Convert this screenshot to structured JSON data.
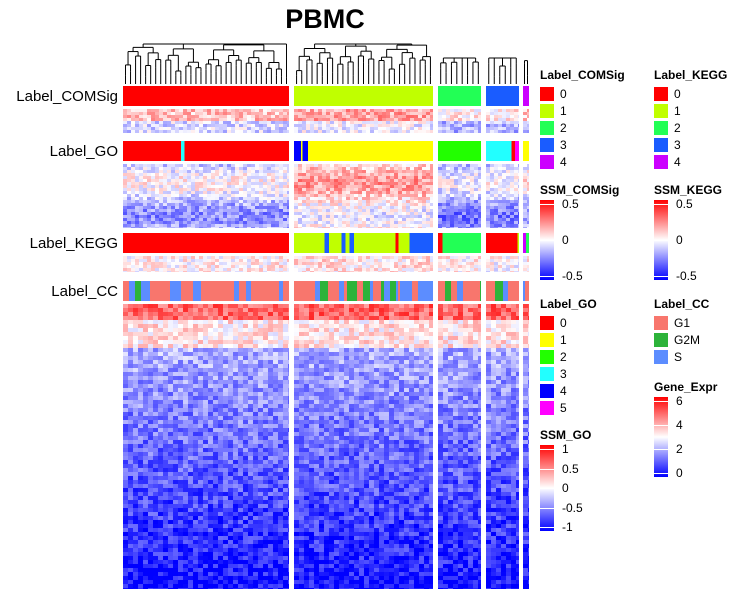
{
  "title": "PBMC",
  "row_labels": {
    "comsig": "Label_COMSig",
    "go": "Label_GO",
    "kegg": "Label_KEGG",
    "cc": "Label_CC"
  },
  "legends": {
    "label_comsig": {
      "title": "Label_COMSig",
      "items": [
        {
          "label": "0",
          "color": "#FF0000"
        },
        {
          "label": "1",
          "color": "#C0FF00"
        },
        {
          "label": "2",
          "color": "#22FF55"
        },
        {
          "label": "3",
          "color": "#1A5CFF"
        },
        {
          "label": "4",
          "color": "#CC00FF"
        }
      ]
    },
    "label_kegg": {
      "title": "Label_KEGG",
      "items": [
        {
          "label": "0",
          "color": "#FF0000"
        },
        {
          "label": "1",
          "color": "#C0FF00"
        },
        {
          "label": "2",
          "color": "#22FF55"
        },
        {
          "label": "3",
          "color": "#1A5CFF"
        },
        {
          "label": "4",
          "color": "#CC00FF"
        }
      ]
    },
    "ssm_comsig": {
      "title": "SSM_COMSig",
      "ticks": [
        "0.5",
        "0",
        "-0.5"
      ]
    },
    "ssm_kegg": {
      "title": "SSM_KEGG",
      "ticks": [
        "0.5",
        "0",
        "-0.5"
      ]
    },
    "label_go": {
      "title": "Label_GO",
      "items": [
        {
          "label": "0",
          "color": "#FF0000"
        },
        {
          "label": "1",
          "color": "#FFFF00"
        },
        {
          "label": "2",
          "color": "#22FF00"
        },
        {
          "label": "3",
          "color": "#22FFFF"
        },
        {
          "label": "4",
          "color": "#0000FF"
        },
        {
          "label": "5",
          "color": "#FF00FF"
        }
      ]
    },
    "label_cc": {
      "title": "Label_CC",
      "items": [
        {
          "label": "G1",
          "color": "#F8766D"
        },
        {
          "label": "G2M",
          "color": "#2DB33A"
        },
        {
          "label": "S",
          "color": "#5C8DFF"
        }
      ]
    },
    "ssm_go": {
      "title": "SSM_GO",
      "ticks": [
        "1",
        "0.5",
        "0",
        "-0.5",
        "-1"
      ]
    },
    "gene_expr": {
      "title": "Gene_Expr",
      "ticks": [
        "6",
        "4",
        "2",
        "0"
      ]
    }
  },
  "chart_data": {
    "type": "heatmap",
    "title": "PBMC",
    "cluster_groups": [
      {
        "label_comsig": "0",
        "label_kegg": "0",
        "label_go_segments": [
          "0",
          "3",
          "0"
        ]
      },
      {
        "label_comsig": "1",
        "label_kegg": "1",
        "label_go_segments": [
          "4",
          "1",
          "4",
          "1"
        ]
      },
      {
        "label_comsig": "2",
        "label_kegg": "2",
        "label_go_segments": [
          "0",
          "2"
        ]
      },
      {
        "label_comsig": "3",
        "label_kegg": "0",
        "label_go_segments": [
          "3",
          "0",
          "5"
        ]
      },
      {
        "label_comsig": "4",
        "label_kegg": "1",
        "label_go_segments": [
          "1"
        ]
      }
    ],
    "annotation_rows": [
      "Label_COMSig",
      "Label_GO",
      "Label_KEGG",
      "Label_CC"
    ],
    "heatmaps": [
      "SSM_COMSig",
      "SSM_GO",
      "SSM_KEGG",
      "Gene_Expr"
    ],
    "colorscales": {
      "ssm_comsig": {
        "min": -0.5,
        "max": 0.5,
        "low": "#0000FF",
        "mid": "#FFFFFF",
        "high": "#FF0000"
      },
      "ssm_kegg": {
        "min": -0.5,
        "max": 0.5,
        "low": "#0000FF",
        "mid": "#FFFFFF",
        "high": "#FF0000"
      },
      "ssm_go": {
        "min": -1,
        "max": 1,
        "low": "#0000FF",
        "mid": "#FFFFFF",
        "high": "#FF0000"
      },
      "gene_expr": {
        "min": 0,
        "max": 6,
        "low": "#0000FF",
        "mid": "#FFFFFF",
        "high": "#FF0000"
      }
    }
  }
}
